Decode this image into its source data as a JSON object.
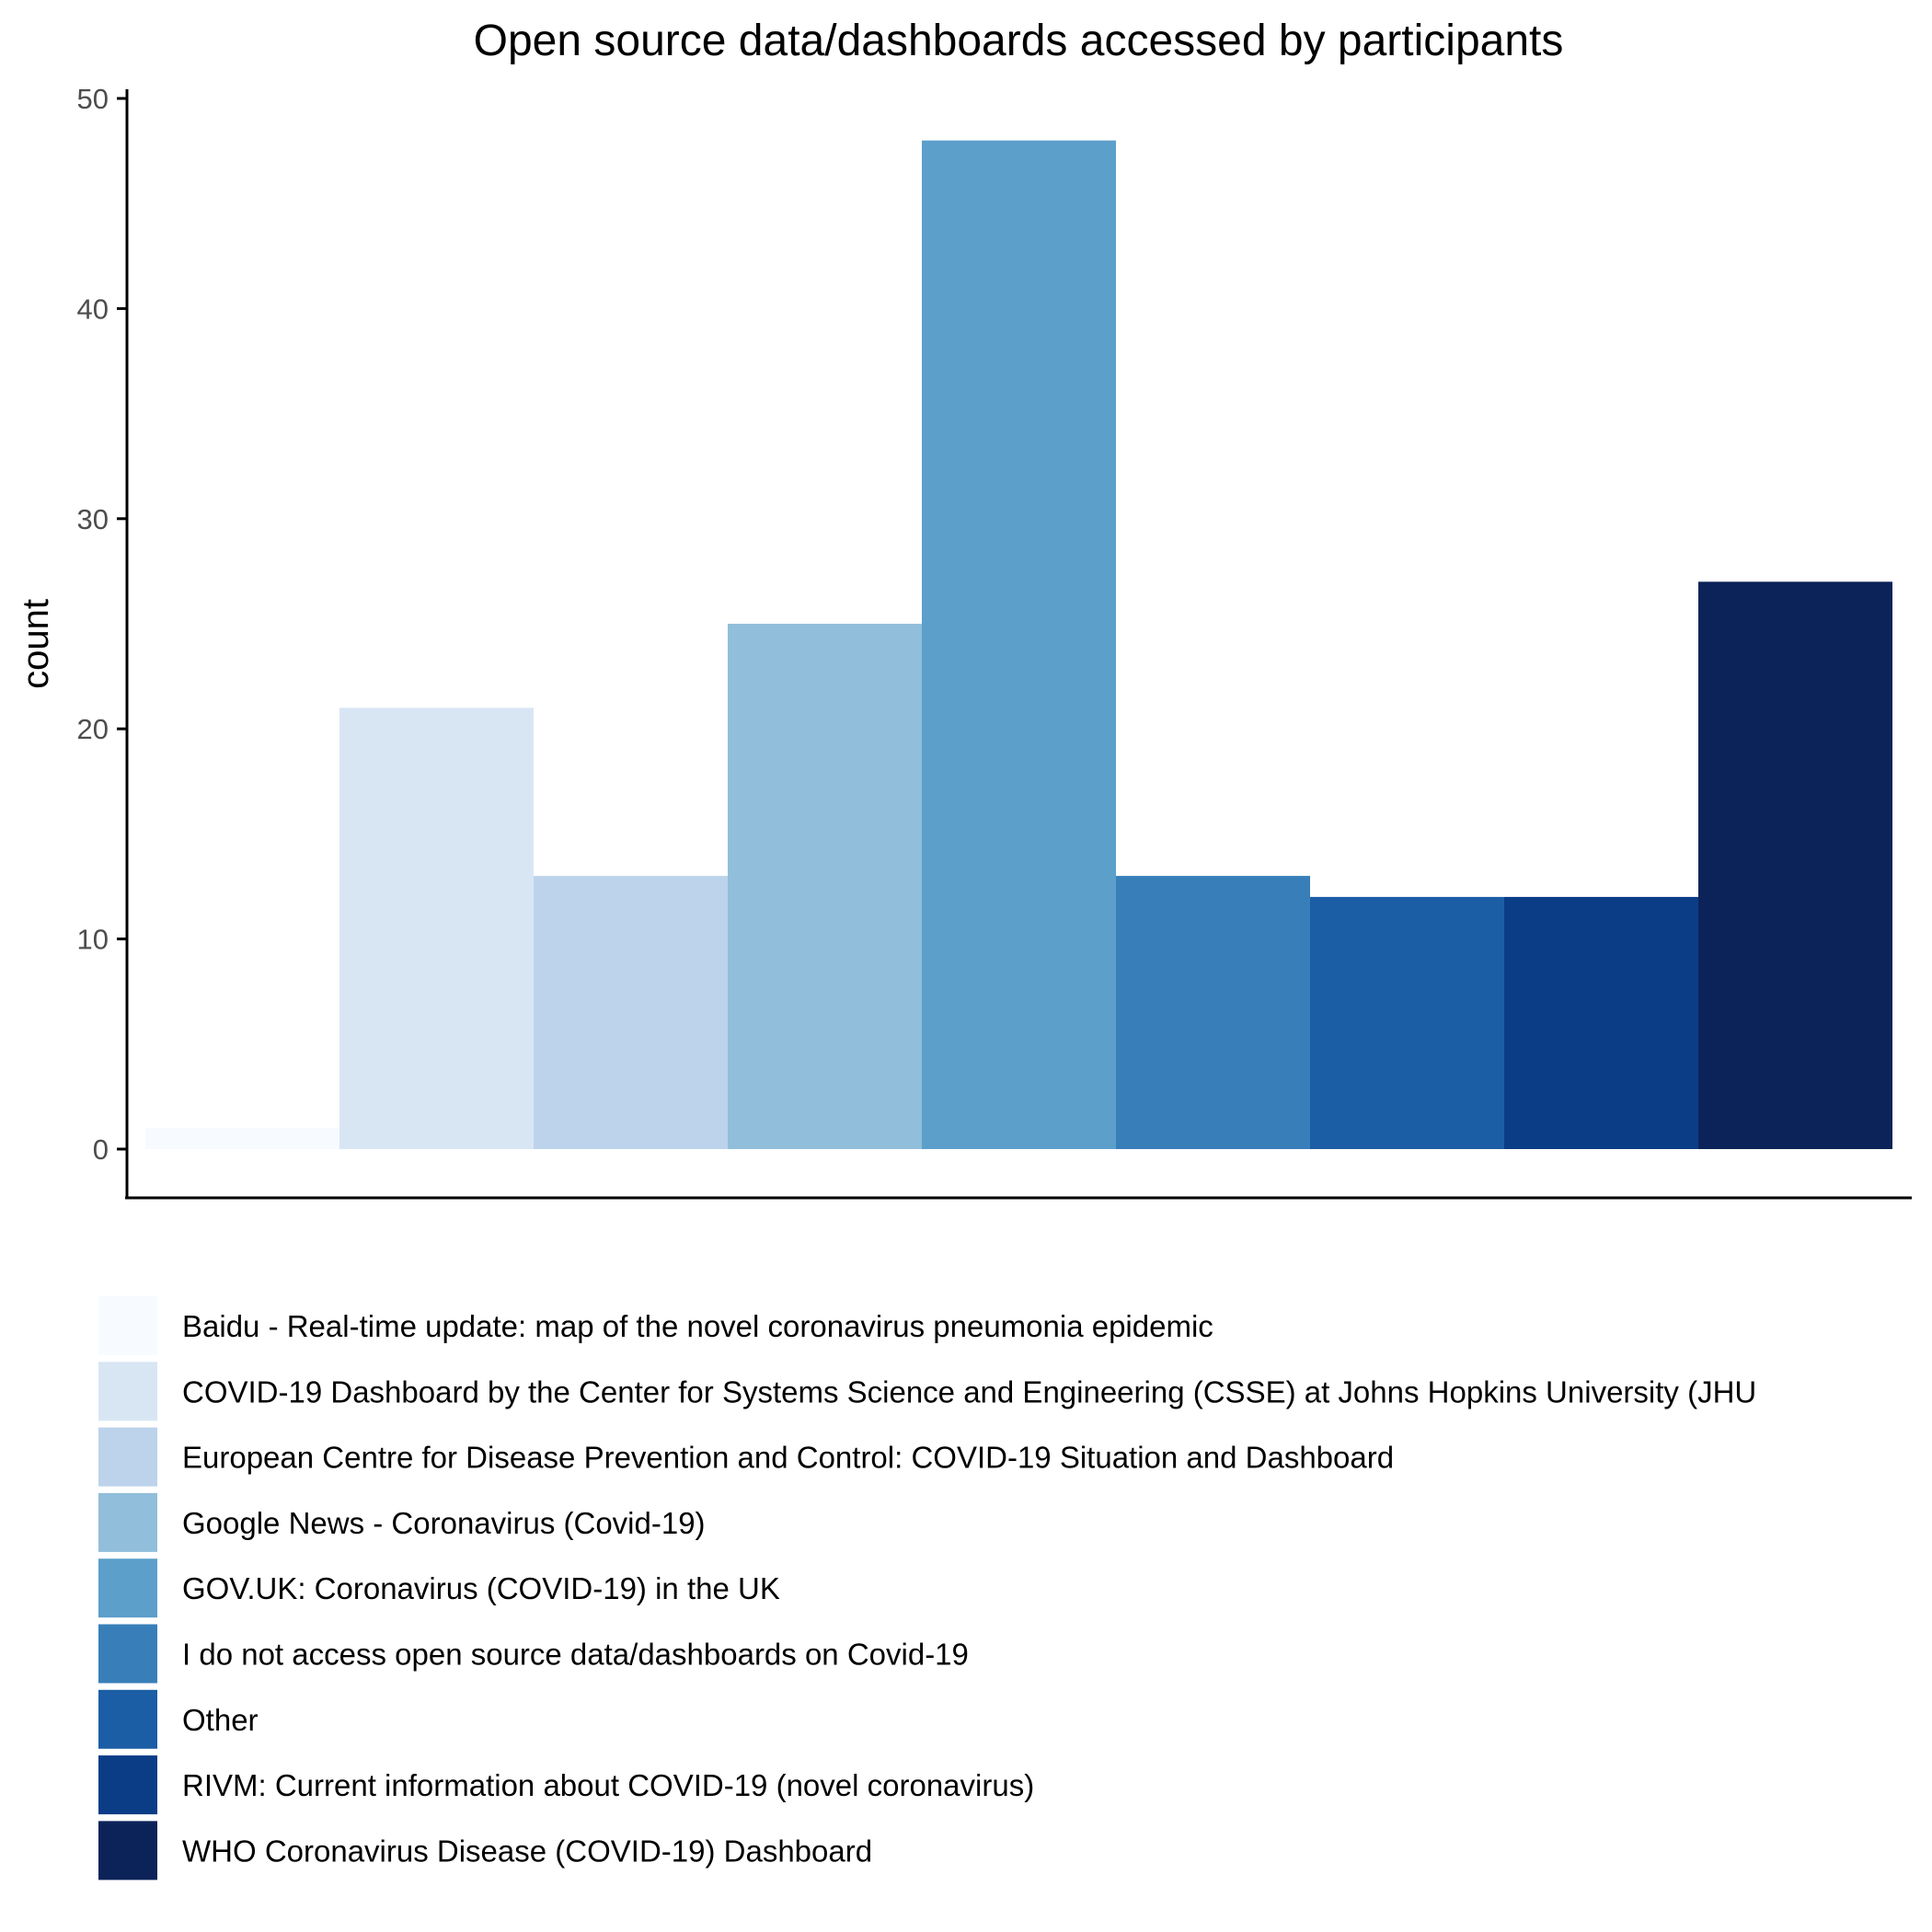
{
  "chart_data": {
    "type": "bar",
    "title": "Open source data/dashboards accessed by participants",
    "xlabel": "",
    "ylabel": "count",
    "ylim": [
      0,
      50
    ],
    "yticks": [
      0,
      10,
      20,
      30,
      40,
      50
    ],
    "grid": false,
    "legend_position": "bottom",
    "categories": [
      "Baidu - Real-time update: map of the novel coronavirus pneumonia epidemic",
      "COVID-19 Dashboard by the Center for Systems Science and Engineering (CSSE) at Johns Hopkins University (JHU",
      "European Centre for Disease Prevention and Control: COVID-19 Situation and Dashboard",
      "Google News - Coronavirus (Covid-19)",
      "GOV.UK: Coronavirus (COVID-19) in the UK",
      "I do not access open source data/dashboards on Covid-19",
      "Other",
      "RIVM: Current information about COVID-19 (novel coronavirus)",
      "WHO Coronavirus Disease (COVID-19) Dashboard"
    ],
    "values": [
      1,
      21,
      13,
      25,
      48,
      13,
      12,
      12,
      27
    ],
    "colors": [
      "#f7fbff",
      "#d8e6f4",
      "#bcd3eb",
      "#91bedb",
      "#5c9fcb",
      "#387fb9",
      "#1c5ea5",
      "#0b3d87",
      "#0c2359"
    ]
  }
}
